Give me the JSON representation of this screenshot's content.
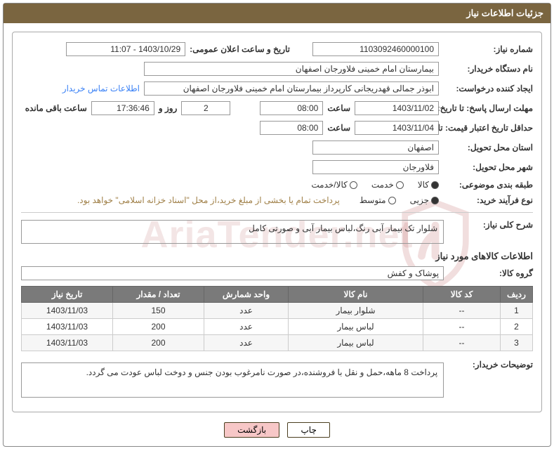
{
  "panel_title": "جزئیات اطلاعات نیاز",
  "labels": {
    "need_no": "شماره نیاز:",
    "announce_datetime": "تاریخ و ساعت اعلان عمومی:",
    "buyer_org": "نام دستگاه خریدار:",
    "requester": "ایجاد کننده درخواست:",
    "contact_link": "اطلاعات تماس خریدار",
    "deadline": "مهلت ارسال پاسخ: تا تاریخ:",
    "hour": "ساعت",
    "days_and": "روز و",
    "remaining": "ساعت باقی مانده",
    "min_valid": "حداقل تاریخ اعتبار قیمت: تا تاریخ:",
    "province": "استان محل تحویل:",
    "city": "شهر محل تحویل:",
    "category": "طبقه بندی موضوعی:",
    "process_type": "نوع فرآیند خرید:",
    "pay_note": "پرداخت تمام یا بخشی از مبلغ خرید،از محل \"اسناد خزانه اسلامی\" خواهد بود.",
    "general_desc": "شرح کلی نیاز:",
    "items_title": "اطلاعات کالاهای مورد نیاز",
    "goods_group": "گروه کالا:",
    "buyer_notes": "توضیحات خریدار:"
  },
  "values": {
    "need_no": "1103092460000100",
    "announce_datetime": "1403/10/29 - 11:07",
    "buyer_org": "بیمارستان امام خمینی فلاورجان اصفهان",
    "requester": "ابوذر جمالی قهدریجانی کارپرداز بیمارستان امام خمینی فلاورجان اصفهان",
    "deadline_date": "1403/11/02",
    "deadline_time": "08:00",
    "remaining_days": "2",
    "remaining_time": "17:36:46",
    "min_valid_date": "1403/11/04",
    "min_valid_time": "08:00",
    "province": "اصفهان",
    "city": "فلاورجان",
    "general_desc": "شلوار تک بیمار آبی رنگ،لباس بیمار آبی و صورتی کامل",
    "goods_group": "پوشاک و کفش",
    "buyer_notes": "پرداخت 8 ماهه،حمل و نقل با فروشنده،در صورت نامرغوب بودن جنس و دوخت لباس عودت می گردد."
  },
  "category_radios": {
    "options": [
      "کالا",
      "خدمت",
      "کالا/خدمت"
    ],
    "selected": 0
  },
  "process_radios": {
    "options": [
      "جزیی",
      "متوسط"
    ],
    "selected": 0
  },
  "table": {
    "columns": [
      "ردیف",
      "کد کالا",
      "نام کالا",
      "واحد شمارش",
      "تعداد / مقدار",
      "تاریخ نیاز"
    ],
    "rows": [
      [
        "1",
        "--",
        "شلوار بیمار",
        "عدد",
        "150",
        "1403/11/03"
      ],
      [
        "2",
        "--",
        "لباس بیمار",
        "عدد",
        "200",
        "1403/11/03"
      ],
      [
        "3",
        "--",
        "لباس بیمار",
        "عدد",
        "200",
        "1403/11/03"
      ]
    ]
  },
  "buttons": {
    "print": "چاپ",
    "back": "بازگشت"
  },
  "watermark": "AriaTender.net"
}
